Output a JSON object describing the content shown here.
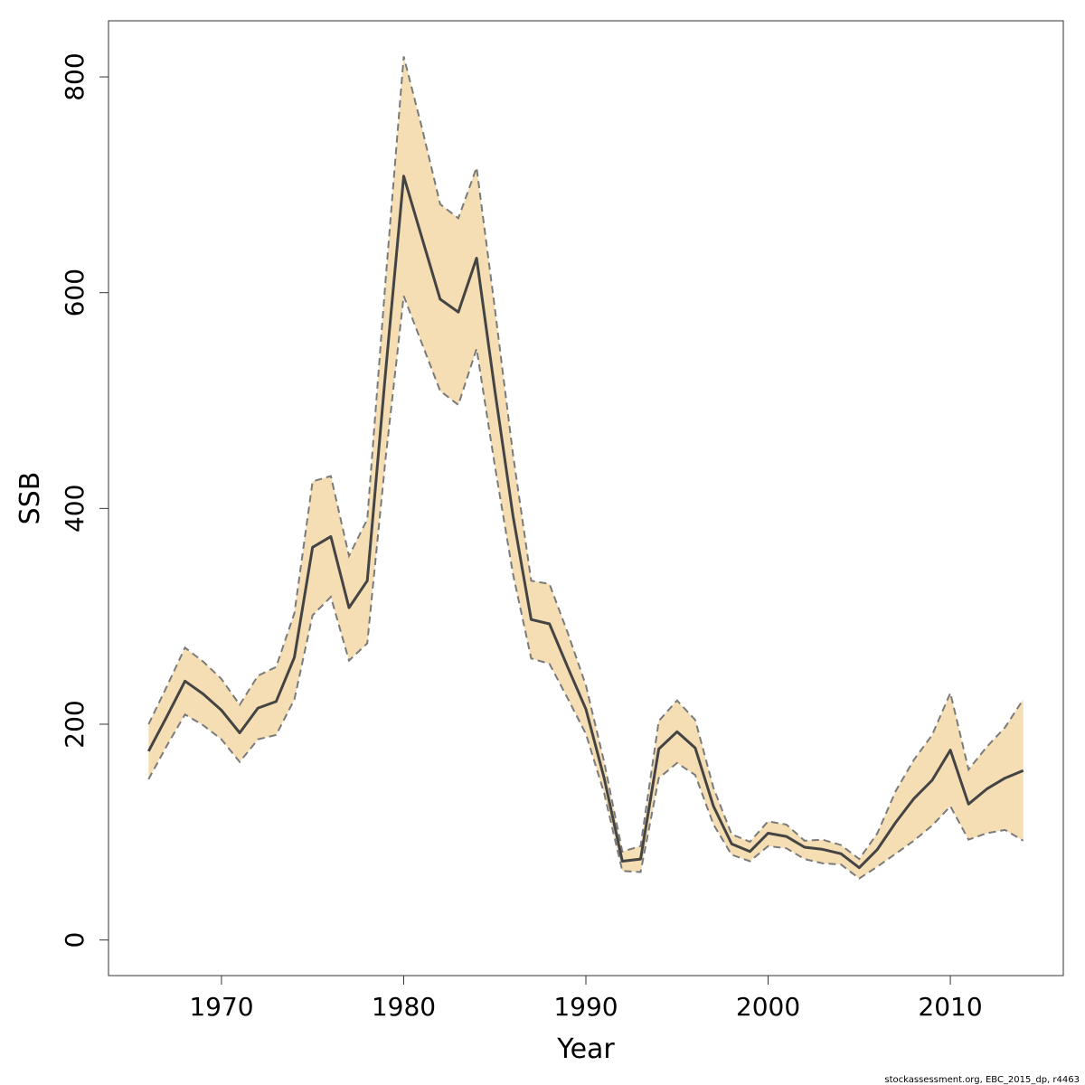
{
  "chart_data": {
    "type": "line",
    "xlabel": "Year",
    "ylabel": "SSB",
    "xlim": [
      1963.8,
      2016.2
    ],
    "ylim": [
      -33,
      852
    ],
    "x_ticks": [
      1970,
      1980,
      1990,
      2000,
      2010
    ],
    "y_ticks": [
      0,
      200,
      400,
      600,
      800
    ],
    "x_tick_labels": [
      "1970",
      "1980",
      "1990",
      "2000",
      "2010"
    ],
    "y_tick_labels": [
      "0",
      "200",
      "400",
      "600",
      "800"
    ],
    "grid": false,
    "x": [
      1966,
      1967,
      1968,
      1969,
      1970,
      1971,
      1972,
      1973,
      1974,
      1975,
      1976,
      1977,
      1978,
      1979,
      1980,
      1981,
      1982,
      1983,
      1984,
      1985,
      1986,
      1987,
      1988,
      1989,
      1990,
      1991,
      1992,
      1993,
      1994,
      1995,
      1996,
      1997,
      1998,
      1999,
      2000,
      2001,
      2002,
      2003,
      2004,
      2005,
      2006,
      2007,
      2008,
      2009,
      2010,
      2011,
      2012,
      2013,
      2014
    ],
    "series": [
      {
        "values": [
          175,
          207,
          240,
          228,
          213,
          192,
          215,
          221,
          262,
          364,
          374,
          308,
          333,
          525,
          708,
          651,
          594,
          582,
          632,
          510,
          393,
          297,
          293,
          253,
          214,
          150,
          73,
          75,
          177,
          193,
          178,
          124,
          89,
          82,
          99,
          96,
          86,
          84,
          80,
          67,
          84,
          109,
          131,
          148,
          176,
          126,
          140,
          150,
          157
        ]
      }
    ],
    "band": {
      "lower": [
        149,
        180,
        209,
        199,
        186,
        165,
        186,
        190,
        223,
        301,
        318,
        259,
        275,
        445,
        597,
        553,
        509,
        496,
        548,
        440,
        339,
        261,
        256,
        224,
        191,
        136,
        64,
        63,
        150,
        164,
        153,
        107,
        79,
        73,
        87,
        85,
        75,
        71,
        70,
        57,
        68,
        80,
        92,
        106,
        124,
        93,
        99,
        102,
        92
      ],
      "upper": [
        200,
        235,
        271,
        258,
        242,
        218,
        245,
        253,
        303,
        425,
        430,
        356,
        390,
        610,
        819,
        753,
        682,
        669,
        716,
        586,
        450,
        333,
        330,
        285,
        236,
        165,
        82,
        87,
        203,
        222,
        204,
        141,
        98,
        91,
        110,
        107,
        92,
        93,
        88,
        75,
        99,
        138,
        167,
        190,
        229,
        158,
        179,
        197,
        223
      ]
    },
    "colors": {
      "band_fill": "#f5deb3",
      "band_edge": "#7a7a7a",
      "line": "#444444",
      "frame": "#333333"
    },
    "footer": "stockassessment.org, EBC_2015_dp, r4463"
  }
}
